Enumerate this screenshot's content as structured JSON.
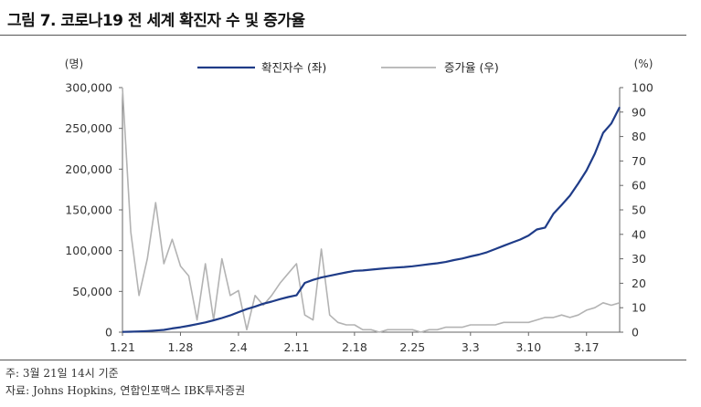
{
  "title": "그림 7. 코로나19 전 세계 확진자 수 및 증가율",
  "notes": {
    "note1": "주: 3월 21일 14시 기준",
    "note2": "자료: Johns Hopkins, 연합인포맥스 IBK투자증권"
  },
  "chart_data": {
    "type": "line",
    "title": "",
    "y_left_unit": "(명)",
    "y_right_unit": "(%)",
    "ylim_left": [
      0,
      300000
    ],
    "ylim_right": [
      0,
      100
    ],
    "yticks_left": [
      "0",
      "50,000",
      "100,000",
      "150,000",
      "200,000",
      "250,000",
      "300,000"
    ],
    "yticks_right": [
      "0",
      "10",
      "20",
      "30",
      "40",
      "50",
      "60",
      "70",
      "80",
      "90",
      "100"
    ],
    "xticks": [
      "1.21",
      "1.28",
      "2.4",
      "2.11",
      "2.18",
      "2.25",
      "3.3",
      "3.10",
      "3.17"
    ],
    "legend": {
      "position": "top-center"
    },
    "colors": {
      "cases": "#1f3c88",
      "growth": "#b3b3b3"
    },
    "x": [
      "1.21",
      "1.22",
      "1.23",
      "1.24",
      "1.25",
      "1.26",
      "1.27",
      "1.28",
      "1.29",
      "1.30",
      "1.31",
      "2.1",
      "2.2",
      "2.3",
      "2.4",
      "2.5",
      "2.6",
      "2.7",
      "2.8",
      "2.9",
      "2.10",
      "2.11",
      "2.12",
      "2.13",
      "2.14",
      "2.15",
      "2.16",
      "2.17",
      "2.18",
      "2.19",
      "2.20",
      "2.21",
      "2.22",
      "2.23",
      "2.24",
      "2.25",
      "2.26",
      "2.27",
      "2.28",
      "2.29",
      "3.1",
      "3.2",
      "3.3",
      "3.4",
      "3.5",
      "3.6",
      "3.7",
      "3.8",
      "3.9",
      "3.10",
      "3.11",
      "3.12",
      "3.13",
      "3.14",
      "3.15",
      "3.16",
      "3.17",
      "3.18",
      "3.19",
      "3.20",
      "3.21"
    ],
    "series": [
      {
        "name": "확진자수 (좌)",
        "axis": "left",
        "values": [
          330,
          580,
          850,
          1320,
          2020,
          2800,
          4580,
          6070,
          7820,
          9800,
          11950,
          14550,
          17400,
          20630,
          24550,
          28280,
          31500,
          34900,
          37550,
          40550,
          43100,
          45200,
          60400,
          64100,
          67100,
          69200,
          71300,
          73300,
          75200,
          75700,
          76700,
          77700,
          78600,
          79200,
          79900,
          80800,
          82000,
          83400,
          84500,
          86100,
          88400,
          90300,
          92900,
          95200,
          98100,
          102000,
          106000,
          109800,
          113600,
          118600,
          125900,
          128300,
          145200,
          156100,
          167500,
          182500,
          198200,
          218800,
          244500,
          256000,
          276000
        ]
      },
      {
        "name": "증가율 (우)",
        "axis": "right",
        "values": [
          100,
          41,
          15,
          30,
          53,
          28,
          38,
          27,
          23,
          5,
          28,
          5,
          30,
          15,
          17,
          1,
          15,
          11,
          15,
          20,
          24,
          28,
          7,
          5,
          34,
          7,
          4,
          3,
          3,
          1,
          1,
          0,
          1,
          1,
          1,
          1,
          0,
          1,
          1,
          2,
          2,
          2,
          3,
          3,
          3,
          3,
          4,
          4,
          4,
          4,
          5,
          6,
          6,
          7,
          6,
          7,
          9,
          10,
          12,
          11,
          12
        ]
      }
    ]
  }
}
